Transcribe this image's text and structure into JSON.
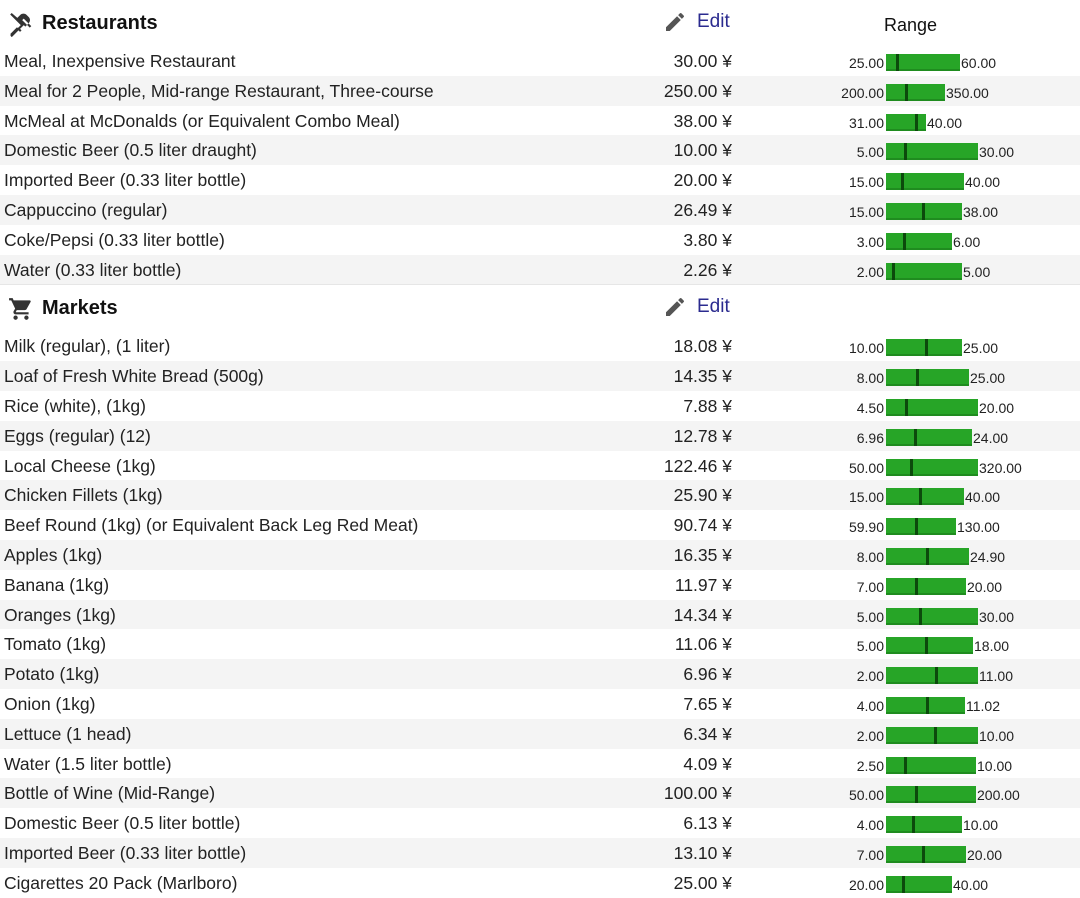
{
  "currency": "¥",
  "range_header": "Range",
  "edit_label": "Edit",
  "colors": {
    "bar": "#27a527",
    "marker": "#0c4a0c",
    "edit_link": "#2b2b8f",
    "alt_row": "#f4f4f4"
  },
  "sections": [
    {
      "title": "Restaurants",
      "icon": "fork-knife-icon",
      "show_range_header": true,
      "items": [
        {
          "name": "Meal, Inexpensive Restaurant",
          "price": "30.00",
          "min": "25.00",
          "max": "60.00"
        },
        {
          "name": "Meal for 2 People, Mid-range Restaurant, Three-course",
          "price": "250.00",
          "min": "200.00",
          "max": "350.00"
        },
        {
          "name": "McMeal at McDonalds (or Equivalent Combo Meal)",
          "price": "38.00",
          "min": "31.00",
          "max": "40.00"
        },
        {
          "name": "Domestic Beer (0.5 liter draught)",
          "price": "10.00",
          "min": "5.00",
          "max": "30.00"
        },
        {
          "name": "Imported Beer (0.33 liter bottle)",
          "price": "20.00",
          "min": "15.00",
          "max": "40.00"
        },
        {
          "name": "Cappuccino (regular)",
          "price": "26.49",
          "min": "15.00",
          "max": "38.00"
        },
        {
          "name": "Coke/Pepsi (0.33 liter bottle)",
          "price": "3.80",
          "min": "3.00",
          "max": "6.00"
        },
        {
          "name": "Water (0.33 liter bottle)",
          "price": "2.26",
          "min": "2.00",
          "max": "5.00"
        }
      ]
    },
    {
      "title": "Markets",
      "icon": "shopping-cart-icon",
      "show_range_header": false,
      "items": [
        {
          "name": "Milk (regular), (1 liter)",
          "price": "18.08",
          "min": "10.00",
          "max": "25.00"
        },
        {
          "name": "Loaf of Fresh White Bread (500g)",
          "price": "14.35",
          "min": "8.00",
          "max": "25.00"
        },
        {
          "name": "Rice (white), (1kg)",
          "price": "7.88",
          "min": "4.50",
          "max": "20.00"
        },
        {
          "name": "Eggs (regular) (12)",
          "price": "12.78",
          "min": "6.96",
          "max": "24.00"
        },
        {
          "name": "Local Cheese (1kg)",
          "price": "122.46",
          "min": "50.00",
          "max": "320.00"
        },
        {
          "name": "Chicken Fillets (1kg)",
          "price": "25.90",
          "min": "15.00",
          "max": "40.00"
        },
        {
          "name": "Beef Round (1kg) (or Equivalent Back Leg Red Meat)",
          "price": "90.74",
          "min": "59.90",
          "max": "130.00"
        },
        {
          "name": "Apples (1kg)",
          "price": "16.35",
          "min": "8.00",
          "max": "24.90"
        },
        {
          "name": "Banana (1kg)",
          "price": "11.97",
          "min": "7.00",
          "max": "20.00"
        },
        {
          "name": "Oranges (1kg)",
          "price": "14.34",
          "min": "5.00",
          "max": "30.00"
        },
        {
          "name": "Tomato (1kg)",
          "price": "11.06",
          "min": "5.00",
          "max": "18.00"
        },
        {
          "name": "Potato (1kg)",
          "price": "6.96",
          "min": "2.00",
          "max": "11.00"
        },
        {
          "name": "Onion (1kg)",
          "price": "7.65",
          "min": "4.00",
          "max": "11.02"
        },
        {
          "name": "Lettuce (1 head)",
          "price": "6.34",
          "min": "2.00",
          "max": "10.00"
        },
        {
          "name": "Water (1.5 liter bottle)",
          "price": "4.09",
          "min": "2.50",
          "max": "10.00"
        },
        {
          "name": "Bottle of Wine (Mid-Range)",
          "price": "100.00",
          "min": "50.00",
          "max": "200.00"
        },
        {
          "name": "Domestic Beer (0.5 liter bottle)",
          "price": "6.13",
          "min": "4.00",
          "max": "10.00"
        },
        {
          "name": "Imported Beer (0.33 liter bottle)",
          "price": "13.10",
          "min": "7.00",
          "max": "20.00"
        },
        {
          "name": "Cigarettes 20 Pack (Marlboro)",
          "price": "25.00",
          "min": "20.00",
          "max": "40.00"
        }
      ]
    }
  ]
}
